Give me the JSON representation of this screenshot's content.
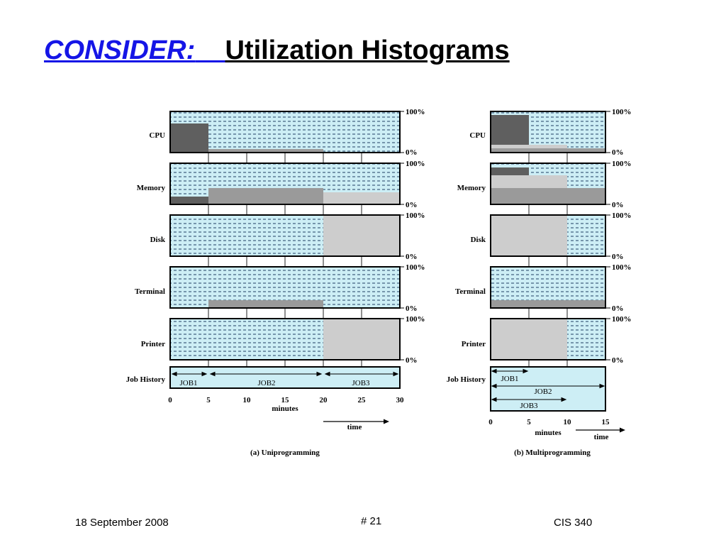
{
  "title": {
    "part1": "CONSIDER:",
    "part2": "Utilization Histograms"
  },
  "colors": {
    "panel_bg": "#cdeef5",
    "dash": "#0c2a52",
    "cpu_dark": "#5f5f5f",
    "mem_gray": "#9a9a9a",
    "light_gray": "#cdcdcd",
    "title_blue": "#1515e6"
  },
  "resources": [
    "CPU",
    "Memory",
    "Disk",
    "Terminal",
    "Printer"
  ],
  "scale": {
    "top": "100%",
    "bottom": "0%"
  },
  "job_history_label": "Job History",
  "uniprogramming": {
    "caption": "(a) Uniprogramming",
    "ticks": [
      "0",
      "5",
      "10",
      "15",
      "20",
      "25",
      "30"
    ],
    "x_label": "minutes",
    "time_label": "time",
    "jobs": [
      "JOB1",
      "JOB2",
      "JOB3"
    ]
  },
  "multiprogramming": {
    "caption": "(b) Multiprogramming",
    "ticks": [
      "0",
      "5",
      "10",
      "15"
    ],
    "x_label": "minutes",
    "time_label": "time",
    "jobs": [
      "JOB1",
      "JOB2",
      "JOB3"
    ]
  },
  "footer": {
    "date": "18 September 2008",
    "page": "# 21",
    "course": "CIS 340"
  }
}
